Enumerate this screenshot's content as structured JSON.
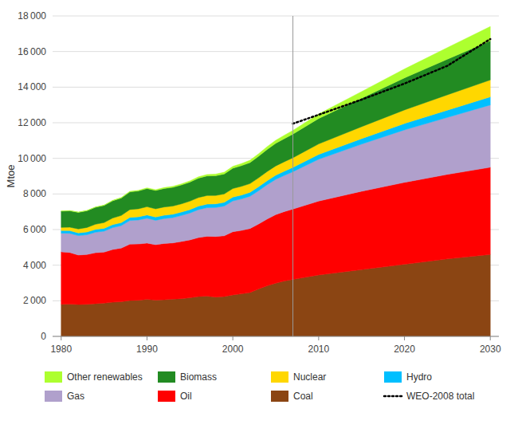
{
  "chart_data": {
    "type": "area",
    "stacked": true,
    "grid": true,
    "legend": "bottom",
    "y_label": "Mtoe",
    "xlim": [
      1979,
      2031
    ],
    "ylim": [
      0,
      18000
    ],
    "xticks": [
      1980,
      1990,
      2000,
      2010,
      2020,
      2030
    ],
    "yticks": [
      0,
      {
        "value": 2000,
        "label": "2 000"
      },
      {
        "value": 4000,
        "label": "4 000"
      },
      {
        "value": 6000,
        "label": "6 000"
      },
      {
        "value": 8000,
        "label": "8 000"
      },
      {
        "value": 10000,
        "label": "10 000"
      },
      {
        "value": 12000,
        "label": "12 000"
      },
      {
        "value": 14000,
        "label": "14 000"
      },
      {
        "value": 16000,
        "label": "16 000"
      },
      {
        "value": 18000,
        "label": "18 000"
      }
    ],
    "vline": 2007,
    "x": [
      1980,
      1981,
      1982,
      1983,
      1984,
      1985,
      1986,
      1987,
      1988,
      1989,
      1990,
      1991,
      1992,
      1993,
      1994,
      1995,
      1996,
      1997,
      1998,
      1999,
      2000,
      2001,
      2002,
      2003,
      2004,
      2005,
      2006,
      2007,
      2007,
      2010,
      2015,
      2020,
      2025,
      2030
    ],
    "series": [
      {
        "name": "Coal",
        "type": "area",
        "color": "#8B4513",
        "values": [
          1800,
          1810,
          1790,
          1800,
          1840,
          1870,
          1920,
          1950,
          2020,
          2030,
          2080,
          2040,
          2060,
          2090,
          2120,
          2170,
          2240,
          2260,
          2210,
          2240,
          2330,
          2390,
          2460,
          2660,
          2840,
          2990,
          3110,
          3200,
          3200,
          3450,
          3750,
          4050,
          4350,
          4600
        ]
      },
      {
        "name": "Oil",
        "type": "area",
        "color": "#FF0000",
        "values": [
          2950,
          2900,
          2780,
          2800,
          2860,
          2860,
          2960,
          3010,
          3160,
          3160,
          3160,
          3110,
          3160,
          3160,
          3210,
          3250,
          3310,
          3360,
          3400,
          3410,
          3550,
          3560,
          3600,
          3650,
          3750,
          3850,
          3900,
          3950,
          3950,
          4150,
          4400,
          4600,
          4750,
          4900
        ]
      },
      {
        "name": "Gas",
        "type": "area",
        "color": "#B0A0CC",
        "values": [
          1050,
          1080,
          1090,
          1110,
          1150,
          1180,
          1230,
          1260,
          1330,
          1350,
          1400,
          1370,
          1400,
          1420,
          1460,
          1510,
          1570,
          1610,
          1630,
          1670,
          1730,
          1770,
          1810,
          1870,
          1930,
          1980,
          2030,
          2100,
          2100,
          2350,
          2650,
          2950,
          3200,
          3500
        ]
      },
      {
        "name": "Hydro",
        "type": "area",
        "color": "#00BFFF",
        "values": [
          148,
          151,
          153,
          155,
          158,
          161,
          165,
          168,
          173,
          176,
          181,
          183,
          186,
          188,
          191,
          195,
          198,
          201,
          205,
          208,
          213,
          216,
          220,
          224,
          228,
          233,
          238,
          243,
          243,
          270,
          310,
          360,
          410,
          455
        ]
      },
      {
        "name": "Nuclear",
        "type": "area",
        "color": "#FFD700",
        "values": [
          172,
          192,
          222,
          252,
          292,
          322,
          372,
          402,
          442,
          452,
          462,
          462,
          462,
          462,
          462,
          472,
          482,
          482,
          472,
          472,
          482,
          492,
          492,
          502,
          512,
          522,
          532,
          542,
          542,
          590,
          670,
          760,
          860,
          950
        ]
      },
      {
        "name": "Biomass",
        "type": "area",
        "color": "#228B22",
        "values": [
          910,
          920,
          930,
          940,
          950,
          960,
          970,
          980,
          990,
          1000,
          1020,
          1030,
          1040,
          1050,
          1060,
          1070,
          1090,
          1100,
          1110,
          1120,
          1140,
          1160,
          1180,
          1210,
          1240,
          1270,
          1300,
          1330,
          1330,
          1430,
          1600,
          1800,
          2000,
          2200
        ]
      },
      {
        "name": "Other renewables",
        "type": "area",
        "color": "#ADFF2F",
        "values": [
          15,
          16,
          17,
          18,
          20,
          22,
          25,
          28,
          32,
          36,
          42,
          46,
          51,
          56,
          62,
          68,
          75,
          82,
          90,
          99,
          109,
          119,
          130,
          142,
          156,
          171,
          187,
          203,
          203,
          250,
          370,
          500,
          650,
          800
        ]
      },
      {
        "name": "WEO-2008 total",
        "type": "line",
        "color": "#000000",
        "line_style": "dotted",
        "values": [
          null,
          null,
          null,
          null,
          null,
          null,
          null,
          null,
          null,
          null,
          null,
          null,
          null,
          null,
          null,
          null,
          null,
          null,
          null,
          null,
          null,
          null,
          null,
          null,
          null,
          null,
          null,
          null,
          11950,
          12450,
          13300,
          14200,
          15200,
          16700
        ]
      }
    ]
  }
}
